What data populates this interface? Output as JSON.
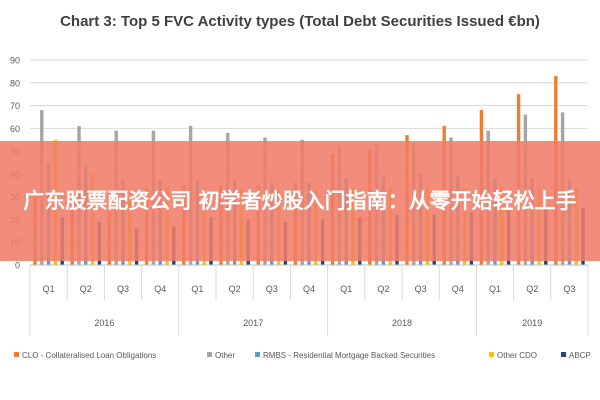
{
  "chart_data": {
    "type": "bar",
    "title": "Chart 3: Top 5 FVC Activity types (Total Debt Securities Issued €bn)",
    "categories": [
      "Q1",
      "Q2",
      "Q3",
      "Q4",
      "Q1",
      "Q2",
      "Q3",
      "Q4",
      "Q1",
      "Q2",
      "Q3",
      "Q4",
      "Q1",
      "Q2",
      "Q3"
    ],
    "groups": [
      {
        "label": "2016",
        "count": 4
      },
      {
        "label": "2017",
        "count": 4
      },
      {
        "label": "2018",
        "count": 4
      },
      {
        "label": "2019",
        "count": 3
      }
    ],
    "ylim": [
      0,
      90
    ],
    "yticks": [
      0,
      10,
      20,
      30,
      40,
      50,
      60,
      70,
      80,
      90
    ],
    "grid": true,
    "legend_position": "bottom",
    "series": [
      {
        "name": "CLO - Collateralised Loan Obligations",
        "color": "#ED7D31",
        "values": [
          30,
          31,
          33,
          34,
          35,
          35,
          35,
          36,
          49,
          51,
          57,
          61,
          68,
          75,
          83
        ]
      },
      {
        "name": "Other",
        "color": "#A5A5A5",
        "values": [
          68,
          61,
          59,
          59,
          61,
          58,
          56,
          55,
          52,
          53,
          53,
          56,
          59,
          66,
          67
        ]
      },
      {
        "name": "RMBS - Residential Mortgage Backed Securities",
        "color": "#5B9BD5",
        "values": [
          45,
          44,
          37,
          37,
          37,
          37,
          36,
          36,
          38,
          39,
          40,
          39,
          38,
          38,
          37
        ]
      },
      {
        "name": "Other CDO",
        "color": "#FFC000",
        "values": [
          55,
          40,
          34,
          34,
          34,
          33,
          33,
          33,
          34,
          34,
          34,
          34,
          34,
          34,
          34
        ]
      },
      {
        "name": "ABCP",
        "color": "#264478",
        "values": [
          21,
          19,
          16,
          17,
          21,
          20,
          19,
          20,
          21,
          22,
          22,
          23,
          24,
          25,
          25
        ]
      }
    ]
  },
  "banner": {
    "text": "广东股票配资公司 初学者炒股入门指南：从零开始轻松上手"
  }
}
